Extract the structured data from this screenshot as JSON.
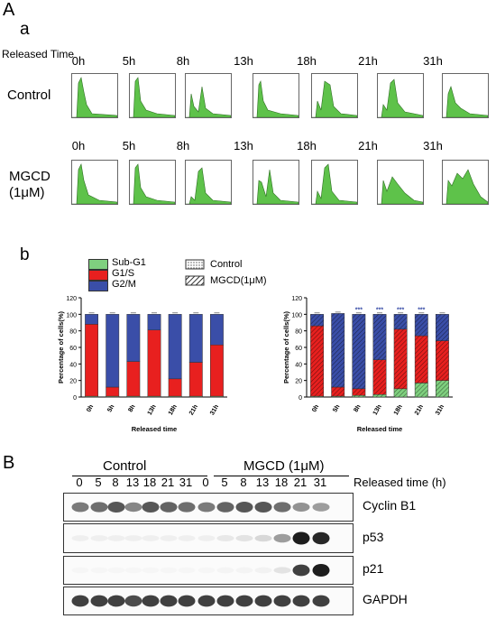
{
  "panel_A_label": "A",
  "panel_a_label": "a",
  "panel_b_label": "b",
  "panel_B_label": "B",
  "released_time_label": "Released Time",
  "timepoints": [
    "0h",
    "5h",
    "8h",
    "13h",
    "18h",
    "21h",
    "31h"
  ],
  "control_row_label": "Control",
  "mgcd_row_label_line1": "MGCD",
  "mgcd_row_label_line2": "(1μM)",
  "legend": {
    "sub_g1": "Sub-G1",
    "g1s": "G1/S",
    "g2m": "G2/M",
    "control": "Control",
    "mgcd": "MGCD(1μM)"
  },
  "colors": {
    "sub_g1": "#7fd07f",
    "g1s": "#e8201f",
    "g2m": "#3a4ea8",
    "hist_fill": "#5ec24a"
  },
  "chart_data": [
    {
      "type": "bar",
      "stacked": true,
      "ylabel": "Percentage of cells(%)",
      "xlabel": "Released time",
      "ylim": [
        0,
        120
      ],
      "yticks": [
        0,
        20,
        40,
        60,
        80,
        100,
        120
      ],
      "categories": [
        "0h",
        "5h",
        "8h",
        "13h",
        "18h",
        "21h",
        "31h"
      ],
      "series": [
        {
          "name": "Sub-G1",
          "values": [
            1,
            1,
            1,
            1,
            1,
            1,
            1
          ]
        },
        {
          "name": "G1/S",
          "values": [
            87,
            11,
            42,
            80,
            21,
            41,
            62
          ]
        },
        {
          "name": "G2/M",
          "values": [
            12,
            88,
            57,
            19,
            78,
            58,
            37
          ]
        }
      ]
    },
    {
      "type": "bar",
      "stacked": true,
      "ylabel": "Percentage of cells(%)",
      "xlabel": "Released time",
      "ylim": [
        0,
        120
      ],
      "yticks": [
        0,
        20,
        40,
        60,
        80,
        100,
        120
      ],
      "categories": [
        "0h",
        "5h",
        "8h",
        "13h",
        "18h",
        "21h",
        "31h"
      ],
      "significance": [
        "",
        "",
        "***",
        "***",
        "***",
        "***",
        ""
      ],
      "series": [
        {
          "name": "Sub-G1",
          "values": [
            1,
            1,
            2,
            3,
            10,
            17,
            20
          ]
        },
        {
          "name": "G1/S",
          "values": [
            85,
            11,
            8,
            42,
            72,
            57,
            48
          ]
        },
        {
          "name": "G2/M",
          "values": [
            14,
            89,
            90,
            55,
            18,
            26,
            32
          ]
        }
      ]
    }
  ],
  "western": {
    "control_label": "Control",
    "mgcd_label": "MGCD (1μM)",
    "released_time_label": "Released time (h)",
    "lanes": [
      "0",
      "5",
      "8",
      "13",
      "18",
      "21",
      "31",
      "0",
      "5",
      "8",
      "13",
      "18",
      "21",
      "31"
    ],
    "proteins": [
      {
        "name": "Cyclin B1",
        "intensities": [
          0.55,
          0.6,
          0.7,
          0.5,
          0.7,
          0.65,
          0.6,
          0.55,
          0.65,
          0.7,
          0.7,
          0.6,
          0.45,
          0.4
        ]
      },
      {
        "name": "p53",
        "intensities": [
          0.05,
          0.05,
          0.05,
          0.05,
          0.05,
          0.05,
          0.05,
          0.05,
          0.08,
          0.1,
          0.15,
          0.4,
          0.95,
          0.9
        ]
      },
      {
        "name": "p21",
        "intensities": [
          0.02,
          0.02,
          0.02,
          0.02,
          0.02,
          0.02,
          0.02,
          0.02,
          0.03,
          0.03,
          0.04,
          0.1,
          0.8,
          0.95
        ]
      },
      {
        "name": "GAPDH",
        "intensities": [
          0.8,
          0.8,
          0.8,
          0.75,
          0.8,
          0.8,
          0.8,
          0.8,
          0.8,
          0.8,
          0.8,
          0.8,
          0.8,
          0.8
        ]
      }
    ]
  }
}
